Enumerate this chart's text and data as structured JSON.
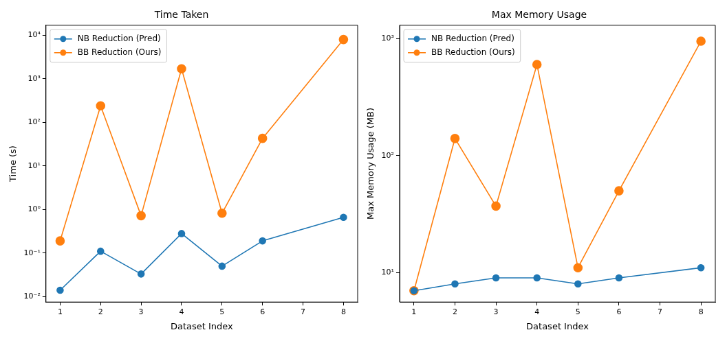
{
  "chart_data": [
    {
      "type": "line",
      "title": "Time Taken",
      "xlabel": "Dataset Index",
      "ylabel": "Time (s)",
      "log": "y",
      "legend": "top left",
      "marker": "circle",
      "grid": false,
      "x": [
        1,
        2,
        3,
        4,
        5,
        6,
        8
      ],
      "xlim": [
        0.65,
        8.35
      ],
      "xticks": [
        1,
        2,
        3,
        4,
        5,
        6,
        7,
        8
      ],
      "ylim": [
        0.0075,
        17000
      ],
      "yticks": [
        {
          "value": 0.01,
          "label": "10⁻²"
        },
        {
          "value": 0.1,
          "label": "10⁻¹"
        },
        {
          "value": 1,
          "label": "10⁰"
        },
        {
          "value": 10,
          "label": "10¹"
        },
        {
          "value": 100,
          "label": "10²"
        },
        {
          "value": 1000,
          "label": "10³"
        },
        {
          "value": 10000,
          "label": "10⁴"
        }
      ],
      "series": [
        {
          "name": "NB Reduction (Pred)",
          "color": "#1f77b4",
          "values": [
            0.014,
            0.11,
            0.033,
            0.28,
            0.05,
            0.19,
            0.66
          ]
        },
        {
          "name": "BB Reduction (Ours)",
          "color": "#ff7f0e",
          "values": [
            0.19,
            240,
            0.72,
            1700,
            0.82,
            43,
            8000
          ]
        }
      ]
    },
    {
      "type": "line",
      "title": "Max Memory Usage",
      "xlabel": "Dataset Index",
      "ylabel": "Max Memory Usage (MB)",
      "log": "y",
      "legend": "top left",
      "marker": "circle",
      "grid": false,
      "x": [
        1,
        2,
        3,
        4,
        5,
        6,
        8
      ],
      "xlim": [
        0.65,
        8.35
      ],
      "xticks": [
        1,
        2,
        3,
        4,
        5,
        6,
        7,
        8
      ],
      "ylim": [
        5.6,
        1300
      ],
      "yticks": [
        {
          "value": 10,
          "label": "10¹"
        },
        {
          "value": 100,
          "label": "10²"
        },
        {
          "value": 1000,
          "label": "10³"
        }
      ],
      "series": [
        {
          "name": "NB Reduction (Pred)",
          "color": "#1f77b4",
          "values": [
            7,
            8,
            9,
            9,
            8,
            9,
            11
          ]
        },
        {
          "name": "BB Reduction (Ours)",
          "color": "#ff7f0e",
          "values": [
            7,
            140,
            37,
            600,
            11,
            50,
            950
          ]
        }
      ]
    }
  ]
}
